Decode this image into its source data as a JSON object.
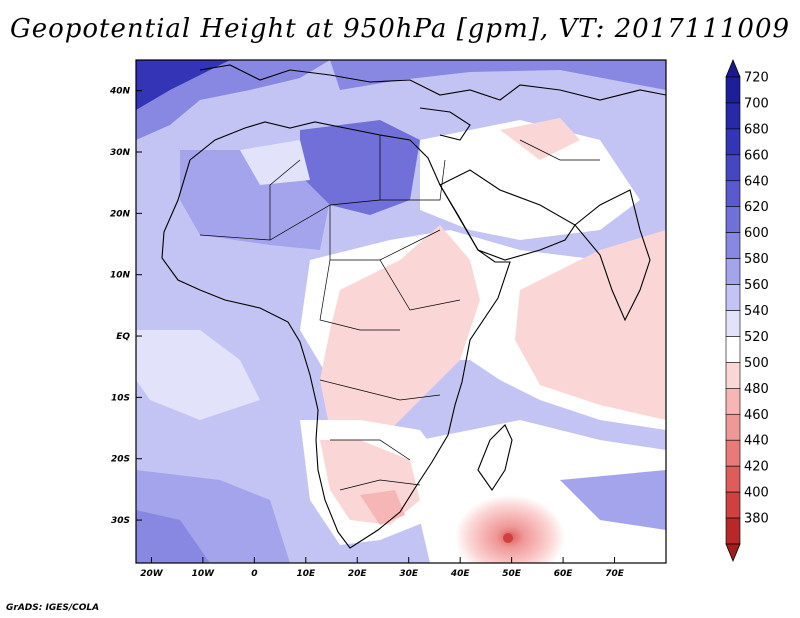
{
  "title": "Geopotential Height at 950hPa [gpm], VT: 2017111009",
  "credit": "GrADS: IGES/COLA",
  "map": {
    "variable": "Geopotential Height",
    "level": "950hPa",
    "units": "gpm",
    "valid_time": "2017111009",
    "lon_range": [
      -23,
      80
    ],
    "lat_range": [
      -37,
      45
    ],
    "lon_ticks": [
      {
        "value": -20,
        "label": "20W"
      },
      {
        "value": -10,
        "label": "10W"
      },
      {
        "value": 0,
        "label": "0"
      },
      {
        "value": 10,
        "label": "10E"
      },
      {
        "value": 20,
        "label": "20E"
      },
      {
        "value": 30,
        "label": "30E"
      },
      {
        "value": 40,
        "label": "40E"
      },
      {
        "value": 50,
        "label": "50E"
      },
      {
        "value": 60,
        "label": "60E"
      },
      {
        "value": 70,
        "label": "70E"
      }
    ],
    "lat_ticks": [
      {
        "value": 40,
        "label": "40N"
      },
      {
        "value": 30,
        "label": "30N"
      },
      {
        "value": 20,
        "label": "20N"
      },
      {
        "value": 10,
        "label": "10N"
      },
      {
        "value": 0,
        "label": "EQ"
      },
      {
        "value": -10,
        "label": "10S"
      },
      {
        "value": -20,
        "label": "20S"
      },
      {
        "value": -30,
        "label": "30S"
      }
    ],
    "low_center": {
      "lon": 50,
      "lat": -33,
      "value": 390
    }
  },
  "colorbar": {
    "levels": [
      {
        "label": "720",
        "color": "#1e1e9a"
      },
      {
        "label": "700",
        "color": "#2828a8"
      },
      {
        "label": "680",
        "color": "#3434b6"
      },
      {
        "label": "660",
        "color": "#4646c2"
      },
      {
        "label": "640",
        "color": "#5a5ace"
      },
      {
        "label": "620",
        "color": "#7070d8"
      },
      {
        "label": "600",
        "color": "#8888e2"
      },
      {
        "label": "580",
        "color": "#a4a4ec"
      },
      {
        "label": "560",
        "color": "#c4c4f4"
      },
      {
        "label": "540",
        "color": "#e2e2fa"
      },
      {
        "label": "520",
        "color": "#ffffff"
      },
      {
        "label": "500",
        "color": "#fbd6d6"
      },
      {
        "label": "480",
        "color": "#f6b6b6"
      },
      {
        "label": "460",
        "color": "#ef9898"
      },
      {
        "label": "440",
        "color": "#e87a7a"
      },
      {
        "label": "420",
        "color": "#de5c5c"
      },
      {
        "label": "400",
        "color": "#cf4040"
      },
      {
        "label": "380",
        "color": "#b82828"
      }
    ],
    "top_arrow_color": "#1a1a8c",
    "bottom_arrow_color": "#a01e1e"
  }
}
